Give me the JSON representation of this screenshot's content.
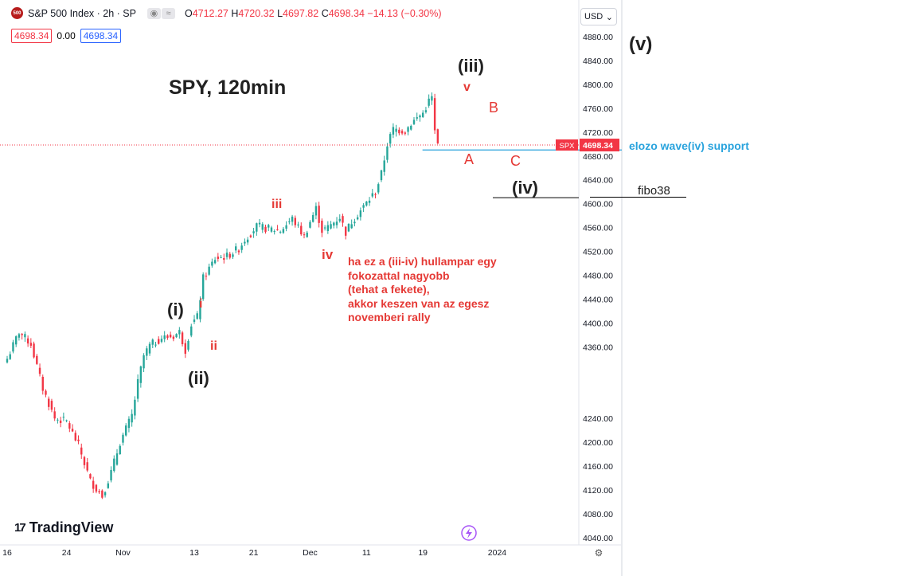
{
  "header": {
    "logo_text": "500",
    "symbol": "S&P 500 Index · 2h · SP",
    "ohlc": [
      {
        "k": "O",
        "v": "4712.27"
      },
      {
        "k": "H",
        "v": "4720.32"
      },
      {
        "k": "L",
        "v": "4697.82"
      },
      {
        "k": "C",
        "v": "4698.34"
      },
      {
        "k": "",
        "v": "−14.13 (−0.30%)"
      }
    ],
    "sell_price": "4698.34",
    "spread": "0.00",
    "buy_price": "4698.34",
    "currency": "USD"
  },
  "watermark": "TradingView",
  "annotations": {
    "title": "SPY, 120min",
    "wave_v": "(v)",
    "wave_iii_big": "(iii)",
    "wave_iv_big": "(iv)",
    "wave_i_big": "(i)",
    "wave_ii_big": "(ii)",
    "small_iii": "iii",
    "small_iv": "iv",
    "small_i": "i",
    "small_ii": "ii",
    "small_v": "v",
    "label_A": "A",
    "label_B": "B",
    "label_C": "C",
    "support": "elozo wave(iv) support",
    "fibo": "fibo38",
    "note": [
      "ha ez a (iii-iv) hullampar egy",
      "fokozattal nagyobb",
      "(tehat a fekete),",
      "akkor keszen van az egesz",
      "novemberi rally"
    ]
  },
  "colors": {
    "up": "#26a69a",
    "down": "#f23645",
    "support_line": "#29a3dd",
    "annotation_red": "#e53935"
  },
  "chart_data": {
    "type": "candlestick",
    "symbol": "SPX",
    "timeframe": "2h",
    "last_price": 4698.34,
    "last_price_label": "4698.34",
    "ylim": [
      4020,
      4900
    ],
    "yticks": [
      4880,
      4840,
      4800,
      4760,
      4720,
      4680,
      4640,
      4600,
      4560,
      4520,
      4480,
      4440,
      4400,
      4360,
      4240,
      4200,
      4160,
      4120,
      4080,
      4040
    ],
    "ytick_labels": [
      "4880.00",
      "4840.00",
      "4800.00",
      "4760.00",
      "4720.00",
      "4680.00",
      "4640.00",
      "4600.00",
      "4560.00",
      "4520.00",
      "4480.00",
      "4440.00",
      "4400.00",
      "4360.00",
      "4240.00",
      "4200.00",
      "4160.00",
      "4120.00",
      "4080.00",
      "4040.00"
    ],
    "xlabels": [
      {
        "label": "16",
        "bar": 0
      },
      {
        "label": "24",
        "bar": 20
      },
      {
        "label": "Nov",
        "bar": 39
      },
      {
        "label": "13",
        "bar": 63
      },
      {
        "label": "21",
        "bar": 83
      },
      {
        "label": "Dec",
        "bar": 102
      },
      {
        "label": "11",
        "bar": 121
      },
      {
        "label": "19",
        "bar": 140
      },
      {
        "label": "2024",
        "bar": 165
      }
    ],
    "bar_count": 180,
    "anchors": [
      [
        0,
        4340
      ],
      [
        4,
        4385
      ],
      [
        8,
        4365
      ],
      [
        12,
        4290
      ],
      [
        16,
        4240
      ],
      [
        20,
        4235
      ],
      [
        24,
        4195
      ],
      [
        28,
        4135
      ],
      [
        32,
        4110
      ],
      [
        35,
        4150
      ],
      [
        38,
        4200
      ],
      [
        42,
        4245
      ],
      [
        44,
        4300
      ],
      [
        46,
        4345
      ],
      [
        48,
        4362
      ],
      [
        52,
        4375
      ],
      [
        56,
        4378
      ],
      [
        58,
        4385
      ],
      [
        60,
        4355
      ],
      [
        62,
        4398
      ],
      [
        64,
        4410
      ],
      [
        66,
        4475
      ],
      [
        70,
        4508
      ],
      [
        74,
        4512
      ],
      [
        78,
        4525
      ],
      [
        80,
        4540
      ],
      [
        84,
        4562
      ],
      [
        88,
        4558
      ],
      [
        92,
        4555
      ],
      [
        96,
        4575
      ],
      [
        100,
        4545
      ],
      [
        102,
        4570
      ],
      [
        104,
        4592
      ],
      [
        106,
        4555
      ],
      [
        108,
        4560
      ],
      [
        112,
        4578
      ],
      [
        114,
        4552
      ],
      [
        116,
        4570
      ],
      [
        120,
        4595
      ],
      [
        124,
        4620
      ],
      [
        126,
        4650
      ],
      [
        128,
        4700
      ],
      [
        130,
        4725
      ],
      [
        134,
        4722
      ],
      [
        136,
        4735
      ],
      [
        140,
        4752
      ],
      [
        142,
        4772
      ],
      [
        143,
        4778
      ],
      [
        144,
        4720
      ],
      [
        145,
        4698.34
      ]
    ],
    "support_level": 4690,
    "fibo38_level": 4610
  }
}
